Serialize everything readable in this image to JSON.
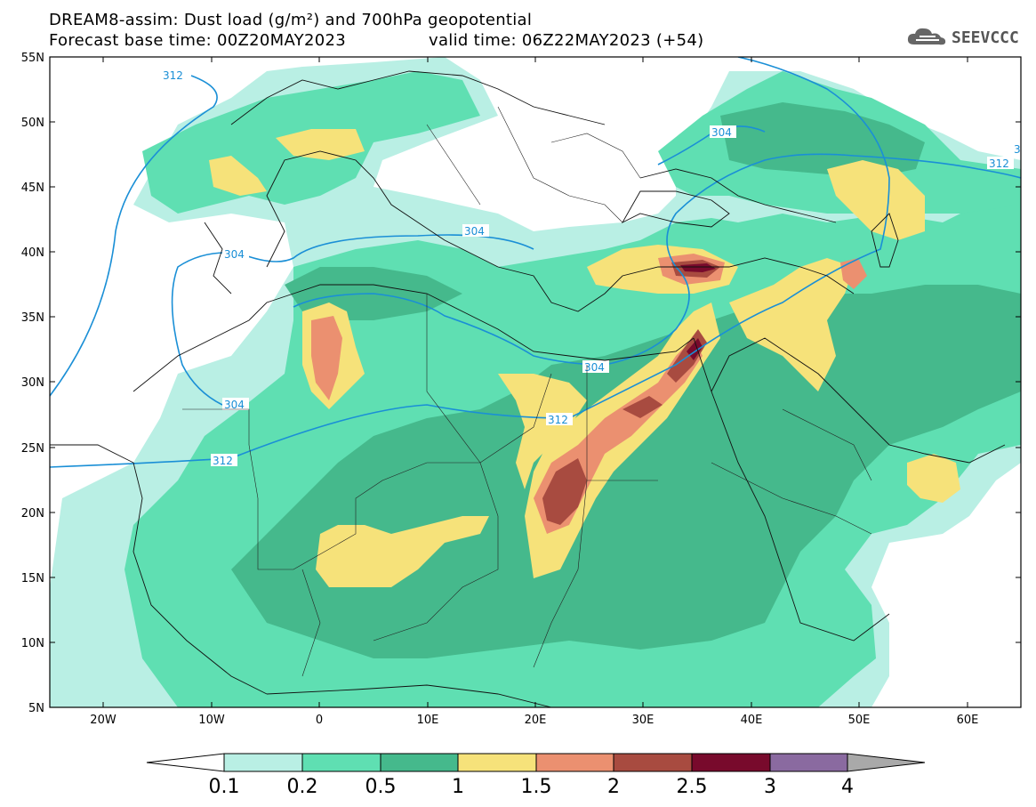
{
  "header": {
    "title_line1": "DREAM8-assim: Dust load (g/m²) and 700hPa geopotential",
    "title_line2_left": "Forecast base time: 00Z20MAY2023",
    "title_line2_right": "valid time: 06Z22MAY2023 (+54)",
    "logo_text": "SEEVCCC"
  },
  "map": {
    "lat_labels": [
      "55N",
      "50N",
      "45N",
      "40N",
      "35N",
      "30N",
      "25N",
      "20N",
      "15N",
      "10N",
      "5N"
    ],
    "lon_labels": [
      "20W",
      "10W",
      "0",
      "10E",
      "20E",
      "30E",
      "40E",
      "50E",
      "60E"
    ],
    "contour_labels": [
      "312",
      "304",
      "304",
      "304",
      "304",
      "312",
      "312",
      "304",
      "312",
      "3"
    ]
  },
  "colorbar": {
    "labels": [
      "0.1",
      "0.2",
      "0.5",
      "1",
      "1.5",
      "2",
      "2.5",
      "3",
      "4"
    ],
    "colors": [
      "#b9efe4",
      "#5fdfb2",
      "#45b98c",
      "#f6e27a",
      "#eb9070",
      "#a84b40",
      "#780a2c",
      "#8a6aa0",
      "#a9a9a9"
    ]
  }
}
